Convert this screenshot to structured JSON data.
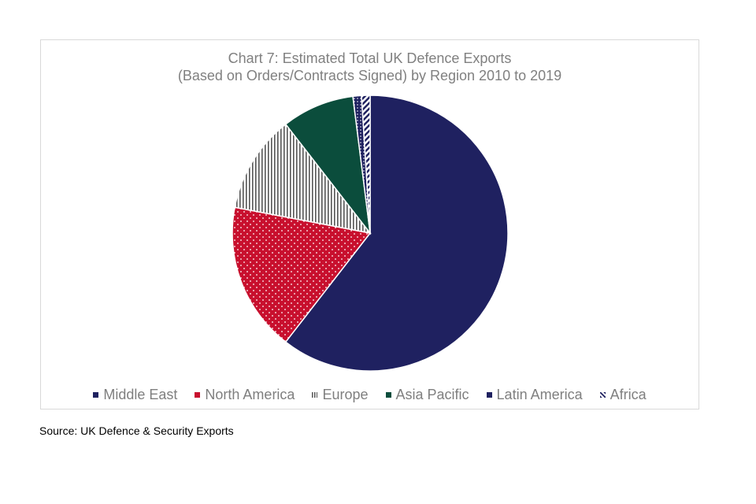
{
  "title_line1": "Chart 7: Estimated Total UK Defence Exports",
  "title_line2": "(Based on Orders/Contracts Signed) by Region 2010 to 2019",
  "source": "Source: UK Defence & Security Exports",
  "chart_data": {
    "type": "pie",
    "title": "Chart 7: Estimated Total UK Defence Exports (Based on Orders/Contracts Signed) by Region 2010 to 2019",
    "legend_position": "bottom",
    "unit": "percent share (estimated)",
    "slices": [
      {
        "label": "Middle East",
        "value": 60.5,
        "color": "#1f2160",
        "pattern": "solid"
      },
      {
        "label": "North America",
        "value": 17.5,
        "color": "#c8102e",
        "pattern": "dots"
      },
      {
        "label": "Europe",
        "value": 11.5,
        "color": "#555555",
        "pattern": "vertical-stripes"
      },
      {
        "label": "Asia Pacific",
        "value": 8.5,
        "color": "#0b4d3c",
        "pattern": "solid"
      },
      {
        "label": "Latin America",
        "value": 1.0,
        "color": "#1f2160",
        "pattern": "dots"
      },
      {
        "label": "Africa",
        "value": 1.0,
        "color": "#1f2160",
        "pattern": "diagonal-stripes"
      }
    ]
  }
}
